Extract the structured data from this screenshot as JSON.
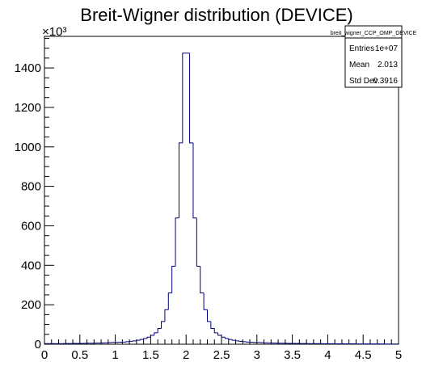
{
  "chart_data": {
    "type": "bar",
    "title": "Breit-Wigner distribution (DEVICE)",
    "xlabel": "",
    "ylabel": "",
    "y_multiplier_label": "×10³",
    "xlim": [
      0,
      5
    ],
    "ylim": [
      0,
      1560
    ],
    "y_units": "thousands",
    "grid": false,
    "x_ticks": [
      "0",
      "0.5",
      "1",
      "1.5",
      "2",
      "2.5",
      "3",
      "3.5",
      "4",
      "4.5",
      "5"
    ],
    "y_ticks": [
      "0",
      "200",
      "400",
      "600",
      "800",
      "1000",
      "1200",
      "1400"
    ],
    "bin_width": 0.05,
    "bins": [
      {
        "x": 0.0,
        "y": 3
      },
      {
        "x": 0.05,
        "y": 3
      },
      {
        "x": 0.1,
        "y": 3
      },
      {
        "x": 0.15,
        "y": 3
      },
      {
        "x": 0.2,
        "y": 3
      },
      {
        "x": 0.25,
        "y": 3
      },
      {
        "x": 0.3,
        "y": 3.5
      },
      {
        "x": 0.35,
        "y": 3.5
      },
      {
        "x": 0.4,
        "y": 4
      },
      {
        "x": 0.45,
        "y": 4
      },
      {
        "x": 0.5,
        "y": 4
      },
      {
        "x": 0.55,
        "y": 4.5
      },
      {
        "x": 0.6,
        "y": 5
      },
      {
        "x": 0.65,
        "y": 5
      },
      {
        "x": 0.7,
        "y": 5.5
      },
      {
        "x": 0.75,
        "y": 6
      },
      {
        "x": 0.8,
        "y": 6.5
      },
      {
        "x": 0.85,
        "y": 7
      },
      {
        "x": 0.9,
        "y": 8
      },
      {
        "x": 0.95,
        "y": 9
      },
      {
        "x": 1.0,
        "y": 9
      },
      {
        "x": 1.05,
        "y": 10
      },
      {
        "x": 1.1,
        "y": 11
      },
      {
        "x": 1.15,
        "y": 13
      },
      {
        "x": 1.2,
        "y": 15
      },
      {
        "x": 1.25,
        "y": 17
      },
      {
        "x": 1.3,
        "y": 20
      },
      {
        "x": 1.35,
        "y": 24
      },
      {
        "x": 1.4,
        "y": 29
      },
      {
        "x": 1.45,
        "y": 36
      },
      {
        "x": 1.5,
        "y": 45
      },
      {
        "x": 1.55,
        "y": 58
      },
      {
        "x": 1.6,
        "y": 80
      },
      {
        "x": 1.65,
        "y": 115
      },
      {
        "x": 1.7,
        "y": 175
      },
      {
        "x": 1.75,
        "y": 260
      },
      {
        "x": 1.8,
        "y": 395
      },
      {
        "x": 1.85,
        "y": 640
      },
      {
        "x": 1.9,
        "y": 1020
      },
      {
        "x": 1.95,
        "y": 1475
      },
      {
        "x": 2.0,
        "y": 1475
      },
      {
        "x": 2.05,
        "y": 1020
      },
      {
        "x": 2.1,
        "y": 640
      },
      {
        "x": 2.15,
        "y": 395
      },
      {
        "x": 2.2,
        "y": 260
      },
      {
        "x": 2.25,
        "y": 175
      },
      {
        "x": 2.3,
        "y": 115
      },
      {
        "x": 2.35,
        "y": 80
      },
      {
        "x": 2.4,
        "y": 58
      },
      {
        "x": 2.45,
        "y": 45
      },
      {
        "x": 2.5,
        "y": 36
      },
      {
        "x": 2.55,
        "y": 29
      },
      {
        "x": 2.6,
        "y": 24
      },
      {
        "x": 2.65,
        "y": 20
      },
      {
        "x": 2.7,
        "y": 17
      },
      {
        "x": 2.75,
        "y": 15
      },
      {
        "x": 2.8,
        "y": 13
      },
      {
        "x": 2.85,
        "y": 11
      },
      {
        "x": 2.9,
        "y": 10
      },
      {
        "x": 2.95,
        "y": 9
      },
      {
        "x": 3.0,
        "y": 9
      },
      {
        "x": 3.05,
        "y": 8
      },
      {
        "x": 3.1,
        "y": 7
      },
      {
        "x": 3.15,
        "y": 6.5
      },
      {
        "x": 3.2,
        "y": 6
      },
      {
        "x": 3.25,
        "y": 5.5
      },
      {
        "x": 3.3,
        "y": 5
      },
      {
        "x": 3.35,
        "y": 5
      },
      {
        "x": 3.4,
        "y": 4.5
      },
      {
        "x": 3.45,
        "y": 4
      },
      {
        "x": 3.5,
        "y": 4
      },
      {
        "x": 3.55,
        "y": 4
      },
      {
        "x": 3.6,
        "y": 3.5
      },
      {
        "x": 3.65,
        "y": 3.5
      },
      {
        "x": 3.7,
        "y": 3
      },
      {
        "x": 3.75,
        "y": 3
      },
      {
        "x": 3.8,
        "y": 3
      },
      {
        "x": 3.85,
        "y": 3
      },
      {
        "x": 3.9,
        "y": 2.5
      },
      {
        "x": 3.95,
        "y": 2.5
      },
      {
        "x": 4.0,
        "y": 2.5
      },
      {
        "x": 4.05,
        "y": 2.5
      },
      {
        "x": 4.1,
        "y": 2
      },
      {
        "x": 4.15,
        "y": 2
      },
      {
        "x": 4.2,
        "y": 2
      },
      {
        "x": 4.25,
        "y": 2
      },
      {
        "x": 4.3,
        "y": 2
      },
      {
        "x": 4.35,
        "y": 2
      },
      {
        "x": 4.4,
        "y": 1.5
      },
      {
        "x": 4.45,
        "y": 1.5
      },
      {
        "x": 4.5,
        "y": 1.5
      },
      {
        "x": 4.55,
        "y": 1.5
      },
      {
        "x": 4.6,
        "y": 1.5
      },
      {
        "x": 4.65,
        "y": 1.5
      },
      {
        "x": 4.7,
        "y": 1.5
      },
      {
        "x": 4.75,
        "y": 1.5
      },
      {
        "x": 4.8,
        "y": 1
      },
      {
        "x": 4.85,
        "y": 1
      },
      {
        "x": 4.9,
        "y": 1
      },
      {
        "x": 4.95,
        "y": 1
      }
    ],
    "line_color": "#000080",
    "legend_placement": "top-right",
    "stats_box": {
      "name": "breit_wigner_CCP_OMP_DEVICE",
      "rows": [
        {
          "label": "Entries",
          "value": "1e+07"
        },
        {
          "label": "Mean",
          "value": "2.013"
        },
        {
          "label": "Std Dev",
          "value": "0.3916"
        }
      ]
    }
  }
}
